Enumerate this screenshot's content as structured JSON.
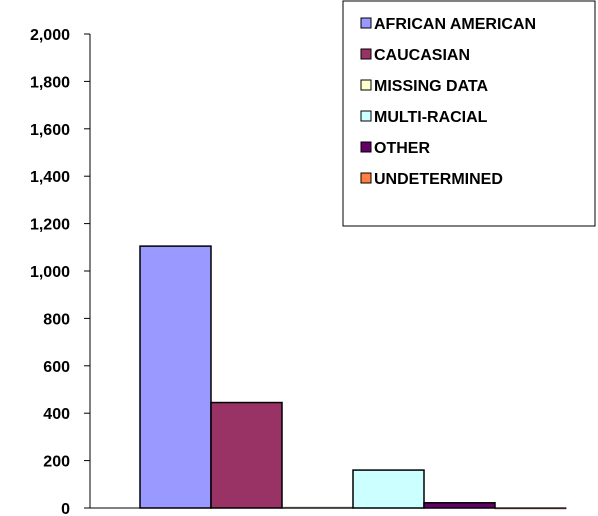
{
  "chart_data": {
    "type": "bar",
    "ylim": [
      0,
      2000
    ],
    "y_ticks": [
      0,
      200,
      400,
      600,
      800,
      1000,
      1200,
      1400,
      1600,
      1800,
      2000
    ],
    "y_tick_labels": [
      "0",
      "200",
      "400",
      "600",
      "800",
      "1,000",
      "1,200",
      "1,400",
      "1,600",
      "1,800",
      "2,000"
    ],
    "grid": false,
    "legend_position": "top-right",
    "series": [
      {
        "name": "AFRICAN AMERICAN",
        "values": [
          1105
        ],
        "color": "#9999FF"
      },
      {
        "name": "CAUCASIAN",
        "values": [
          445
        ],
        "color": "#993366"
      },
      {
        "name": "MISSING DATA",
        "values": [
          3
        ],
        "color": "#FFFFCC"
      },
      {
        "name": "MULTI-RACIAL",
        "values": [
          160
        ],
        "color": "#CCFFFF"
      },
      {
        "name": "OTHER",
        "values": [
          22
        ],
        "color": "#660066"
      },
      {
        "name": "UNDETERMINED",
        "values": [
          1
        ],
        "color": "#FF8040"
      }
    ]
  }
}
